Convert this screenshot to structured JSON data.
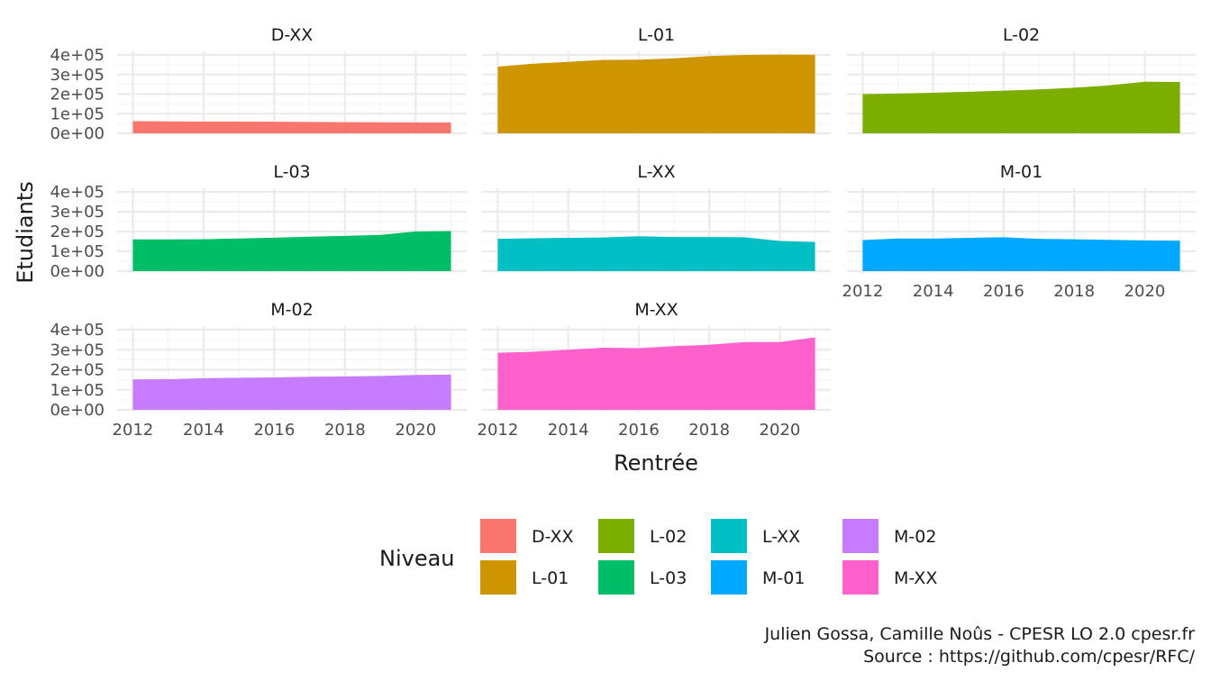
{
  "chart_data": {
    "type": "area",
    "facet_by": "Niveau",
    "xlabel": "Rentrée",
    "ylabel": "Etudiants",
    "xlim": [
      2012,
      2021
    ],
    "ylim": [
      0,
      400000
    ],
    "x_ticks": [
      2012,
      2014,
      2016,
      2018,
      2020
    ],
    "x_tick_labels": [
      "2012",
      "2014",
      "2016",
      "2018",
      "2020"
    ],
    "y_ticks": [
      0,
      100000,
      200000,
      300000,
      400000
    ],
    "y_tick_labels": [
      "0e+00",
      "1e+05",
      "2e+05",
      "3e+05",
      "4e+05"
    ],
    "x": [
      2012,
      2013,
      2014,
      2015,
      2016,
      2017,
      2018,
      2019,
      2020,
      2021
    ],
    "grid": true,
    "legend_position": "bottom",
    "legend_title": "Niveau",
    "series": [
      {
        "name": "D-XX",
        "color": "#F8766D",
        "values": [
          62000,
          61000,
          60000,
          59500,
          59000,
          58000,
          57000,
          56500,
          56000,
          56000
        ]
      },
      {
        "name": "L-01",
        "color": "#CD9600",
        "values": [
          340000,
          355000,
          365000,
          375000,
          376000,
          383000,
          394000,
          400000,
          402000,
          401000
        ]
      },
      {
        "name": "L-02",
        "color": "#7CAE00",
        "values": [
          200000,
          203000,
          207000,
          212000,
          218000,
          224000,
          233000,
          245000,
          263000,
          262000
        ]
      },
      {
        "name": "L-03",
        "color": "#00BE67",
        "values": [
          160000,
          160000,
          161000,
          165000,
          169000,
          174000,
          178000,
          183000,
          200000,
          202000
        ]
      },
      {
        "name": "L-XX",
        "color": "#00BFC4",
        "values": [
          163000,
          166000,
          168000,
          170000,
          176000,
          172000,
          172000,
          171000,
          152000,
          147000
        ]
      },
      {
        "name": "M-01",
        "color": "#00A9FF",
        "values": [
          157000,
          165000,
          164000,
          168000,
          171000,
          163000,
          161000,
          158000,
          155000,
          154000
        ]
      },
      {
        "name": "M-02",
        "color": "#C77CFF",
        "values": [
          152000,
          153000,
          158000,
          160000,
          162000,
          165000,
          167000,
          169000,
          174000,
          176000
        ]
      },
      {
        "name": "M-XX",
        "color": "#FF61CC",
        "values": [
          285000,
          290000,
          300000,
          310000,
          308000,
          318000,
          325000,
          338000,
          338000,
          362000
        ]
      }
    ]
  },
  "caption": {
    "line1": "Julien Gossa, Camille Noûs - CPESR LO 2.0 cpesr.fr",
    "line2": "Source : https://github.com/cpesr/RFC/"
  }
}
